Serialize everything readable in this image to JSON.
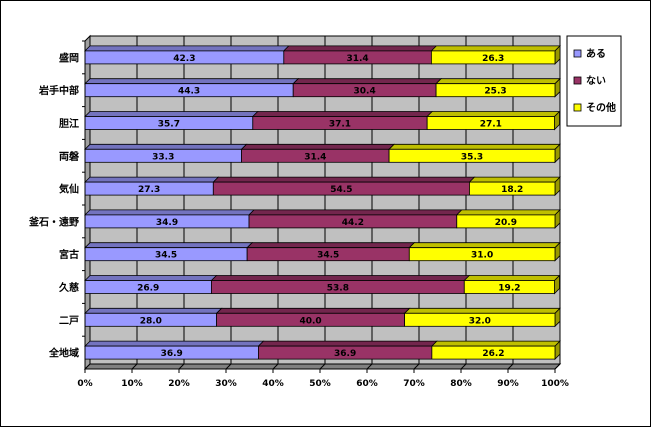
{
  "chart_data": {
    "type": "bar",
    "orientation": "horizontal",
    "stacked": "percent",
    "categories": [
      "盛岡",
      "岩手中部",
      "胆江",
      "両磐",
      "気仙",
      "釜石・遠野",
      "宮古",
      "久慈",
      "二戸",
      "全地域"
    ],
    "series": [
      {
        "name": "ある",
        "color": "#9999ff",
        "values": [
          42.3,
          44.3,
          35.7,
          33.3,
          27.3,
          34.9,
          34.5,
          26.9,
          28.0,
          36.9
        ]
      },
      {
        "name": "ない",
        "color": "#993366",
        "values": [
          31.4,
          30.4,
          37.1,
          31.4,
          54.5,
          44.2,
          34.5,
          53.8,
          40.0,
          36.9
        ]
      },
      {
        "name": "その他",
        "color": "#ffff00",
        "values": [
          26.3,
          25.3,
          27.1,
          35.3,
          18.2,
          20.9,
          31.0,
          19.2,
          32.0,
          26.2
        ]
      }
    ],
    "value_labels": [
      [
        "42.3",
        "44.3",
        "35.7",
        "33.3",
        "27.3",
        "34.9",
        "34.5",
        "26.9",
        "28.0",
        "36.9"
      ],
      [
        "31.4",
        "30.4",
        "37.1",
        "31.4",
        "54.5",
        "44.2",
        "34.5",
        "53.8",
        "40.0",
        "36.9"
      ],
      [
        "26.3",
        "25.3",
        "27.1",
        "35.3",
        "18.2",
        "20.9",
        "31.0",
        "19.2",
        "32.0",
        "26.2"
      ]
    ],
    "xticks": [
      "0%",
      "10%",
      "20%",
      "30%",
      "40%",
      "50%",
      "60%",
      "70%",
      "80%",
      "90%",
      "100%"
    ],
    "xlim": [
      0,
      100
    ],
    "grid": true,
    "legend_position": "right",
    "plot_background": "#c0c0c0",
    "title": "",
    "xlabel": "",
    "ylabel": ""
  }
}
